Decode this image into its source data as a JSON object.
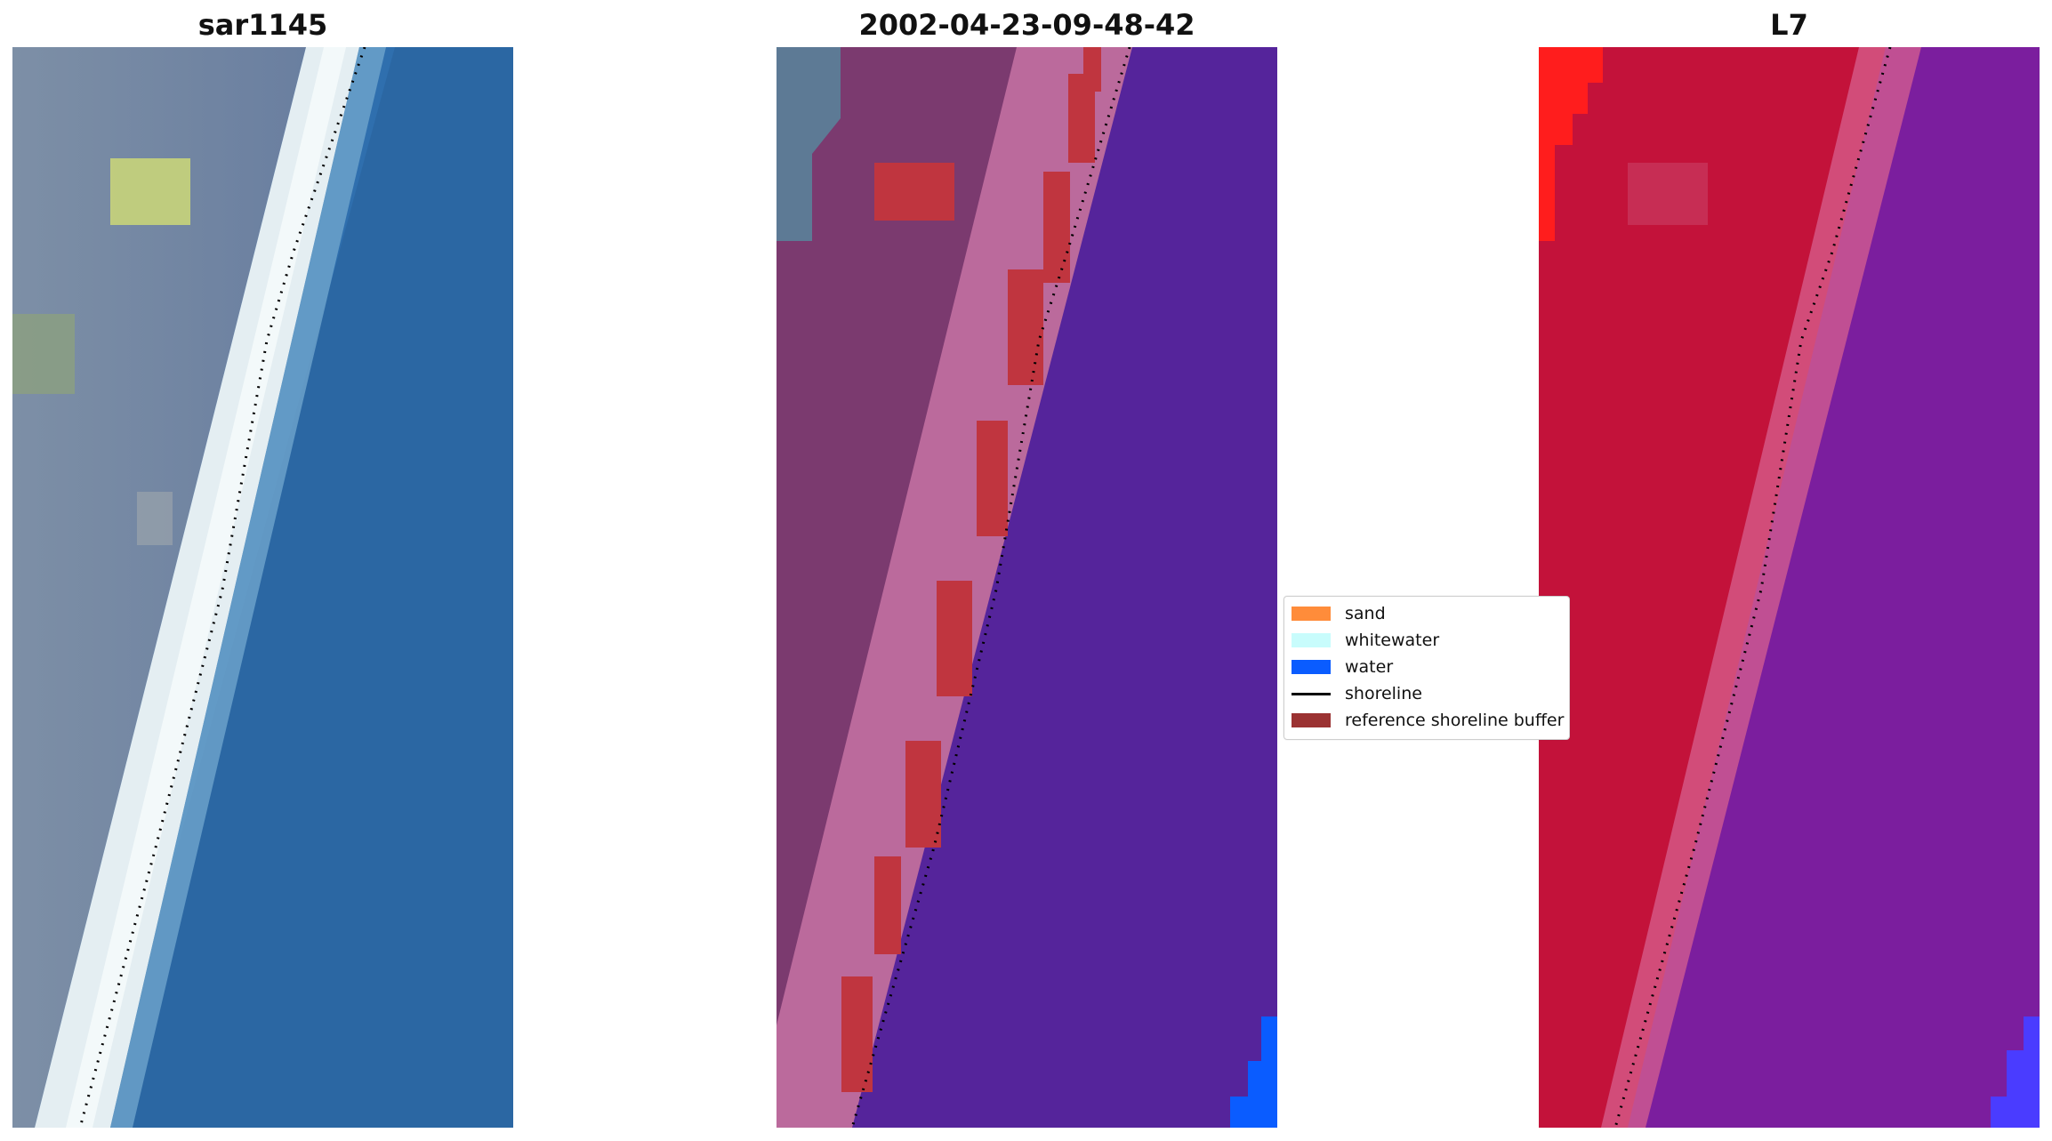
{
  "panels": [
    {
      "id": "rgb",
      "title": "sar1145"
    },
    {
      "id": "classified",
      "title": "2002-04-23-09-48-42"
    },
    {
      "id": "index",
      "title": "L7"
    }
  ],
  "legend": {
    "items": [
      {
        "label": "sand",
        "kind": "patch",
        "color": "#ff8c3a"
      },
      {
        "label": "whitewater",
        "kind": "patch",
        "color": "#c8fcfc"
      },
      {
        "label": "water",
        "kind": "patch",
        "color": "#0a5cff"
      },
      {
        "label": "shoreline",
        "kind": "line",
        "color": "#000000"
      },
      {
        "label": "reference shoreline buffer",
        "kind": "patch",
        "color": "#9b3232"
      }
    ]
  },
  "colors": {
    "rgb_land": "#6f86a3",
    "rgb_beach": "#e2ecf0",
    "rgb_water": "#2f72ad",
    "class_land": "#7b3a6f",
    "class_beach": "#bb6a9c",
    "class_buffer": "#c0353f",
    "class_water": "#55249b",
    "class_water_blue": "#0a5cff",
    "index_land": "#c3123a",
    "index_land_bright": "#ff1d1d",
    "index_water": "#7b1e9e",
    "index_water_blue": "#4a3cff",
    "shoreline": "#000000"
  }
}
